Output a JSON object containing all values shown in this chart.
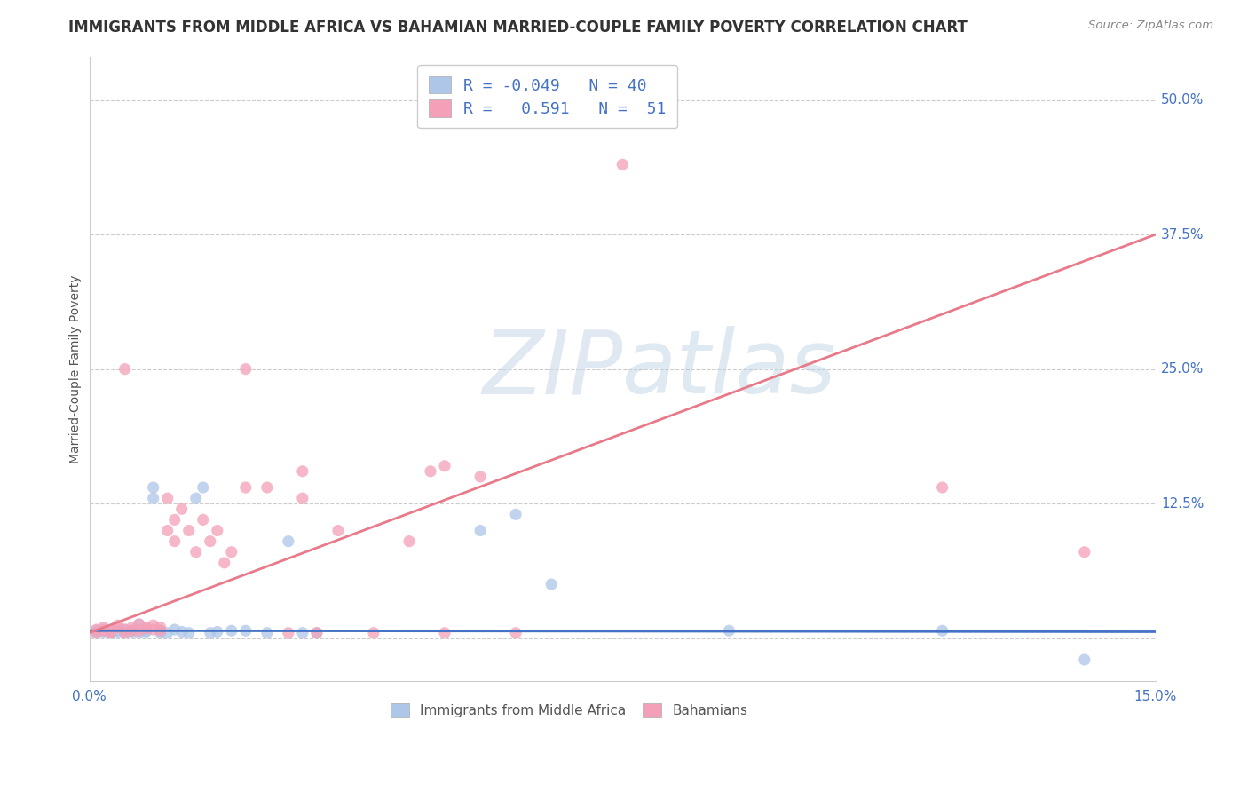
{
  "title": "IMMIGRANTS FROM MIDDLE AFRICA VS BAHAMIAN MARRIED-COUPLE FAMILY POVERTY CORRELATION CHART",
  "source": "Source: ZipAtlas.com",
  "ylabel": "Married-Couple Family Poverty",
  "xlim": [
    0.0,
    0.15
  ],
  "ylim": [
    -0.04,
    0.54
  ],
  "yticks": [
    0.0,
    0.125,
    0.25,
    0.375,
    0.5
  ],
  "yticklabels": [
    "",
    "12.5%",
    "25.0%",
    "37.5%",
    "50.0%"
  ],
  "xtick_positions": [
    0.0,
    0.05,
    0.1,
    0.15
  ],
  "xticklabels": [
    "0.0%",
    "",
    "",
    "15.0%"
  ],
  "legend_blue_r": "-0.049",
  "legend_blue_n": "40",
  "legend_pink_r": "0.591",
  "legend_pink_n": "51",
  "blue_color": "#aec6e8",
  "pink_color": "#f4a0b8",
  "blue_line_color": "#4472c4",
  "pink_line_color": "#e87a8a",
  "watermark_color": "#d0dff0",
  "blue_line_y0": 0.007,
  "blue_line_y1": 0.006,
  "pink_line_y0": 0.005,
  "pink_line_y1": 0.375,
  "blue_scatter_x": [
    0.001,
    0.001,
    0.002,
    0.002,
    0.003,
    0.003,
    0.004,
    0.004,
    0.005,
    0.005,
    0.006,
    0.006,
    0.007,
    0.007,
    0.008,
    0.008,
    0.009,
    0.009,
    0.01,
    0.01,
    0.011,
    0.012,
    0.013,
    0.014,
    0.015,
    0.016,
    0.017,
    0.018,
    0.02,
    0.022,
    0.025,
    0.028,
    0.03,
    0.032,
    0.055,
    0.06,
    0.065,
    0.09,
    0.12,
    0.14
  ],
  "blue_scatter_y": [
    0.007,
    0.005,
    0.008,
    0.006,
    0.005,
    0.007,
    0.007,
    0.006,
    0.005,
    0.008,
    0.006,
    0.007,
    0.013,
    0.005,
    0.006,
    0.007,
    0.13,
    0.14,
    0.007,
    0.005,
    0.005,
    0.008,
    0.006,
    0.005,
    0.13,
    0.14,
    0.005,
    0.006,
    0.007,
    0.007,
    0.005,
    0.09,
    0.005,
    0.005,
    0.1,
    0.115,
    0.05,
    0.007,
    0.007,
    -0.02
  ],
  "pink_scatter_x": [
    0.001,
    0.001,
    0.002,
    0.002,
    0.003,
    0.003,
    0.004,
    0.004,
    0.005,
    0.005,
    0.006,
    0.006,
    0.007,
    0.007,
    0.008,
    0.008,
    0.009,
    0.009,
    0.01,
    0.01,
    0.011,
    0.011,
    0.012,
    0.012,
    0.013,
    0.014,
    0.015,
    0.016,
    0.017,
    0.018,
    0.019,
    0.02,
    0.022,
    0.025,
    0.028,
    0.03,
    0.032,
    0.035,
    0.04,
    0.045,
    0.005,
    0.022,
    0.03,
    0.048,
    0.05,
    0.05,
    0.055,
    0.06,
    0.075,
    0.12,
    0.14
  ],
  "pink_scatter_y": [
    0.005,
    0.008,
    0.01,
    0.007,
    0.005,
    0.006,
    0.01,
    0.012,
    0.008,
    0.005,
    0.007,
    0.01,
    0.013,
    0.007,
    0.009,
    0.01,
    0.008,
    0.012,
    0.007,
    0.01,
    0.13,
    0.1,
    0.11,
    0.09,
    0.12,
    0.1,
    0.08,
    0.11,
    0.09,
    0.1,
    0.07,
    0.08,
    0.14,
    0.14,
    0.005,
    0.13,
    0.005,
    0.1,
    0.005,
    0.09,
    0.25,
    0.25,
    0.155,
    0.155,
    0.16,
    0.005,
    0.15,
    0.005,
    0.44,
    0.14,
    0.08
  ]
}
